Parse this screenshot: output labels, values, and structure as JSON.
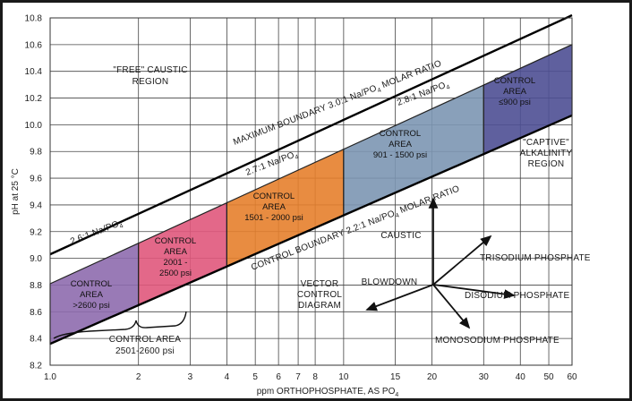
{
  "chart_data": {
    "type": "area",
    "title": "",
    "xlabel": "ppm ORTHOPHOSPHATE, AS PO",
    "xlabel_sub": "4",
    "ylabel": "pH at 25 °C",
    "x_scale": "log",
    "xlim": [
      1.0,
      60
    ],
    "ylim": [
      8.2,
      10.8
    ],
    "x_ticks": [
      1.0,
      2,
      3,
      4,
      5,
      6,
      7,
      8,
      10,
      15,
      20,
      30,
      40,
      50,
      60
    ],
    "x_tick_labels": [
      "1.0",
      "2",
      "3",
      "4",
      "5",
      "6",
      "7",
      "8",
      "10",
      "15",
      "20",
      "30",
      "40",
      "50",
      "60"
    ],
    "y_ticks": [
      8.2,
      8.4,
      8.6,
      8.8,
      9.0,
      9.2,
      9.4,
      9.6,
      9.8,
      10.0,
      10.2,
      10.4,
      10.6,
      10.8
    ],
    "y_tick_labels": [
      "8.2",
      "8.4",
      "8.6",
      "8.8",
      "9.0",
      "9.2",
      "9.4",
      "9.6",
      "9.8",
      "10.0",
      "10.2",
      "10.4",
      "10.6",
      "10.8"
    ],
    "grid": true,
    "boundaries": [
      {
        "label": "MAXIMUM BOUNDARY 3.0:1 Na/PO",
        "sub": "4",
        "label_tail": " MOLAR RATIO",
        "points": [
          [
            1.0,
            9.03
          ],
          [
            60,
            10.82
          ]
        ]
      },
      {
        "label": "CONTROL BOUNDARY 2.2:1 Na/PO",
        "sub": "4",
        "label_tail": " MOLAR RATIO",
        "points": [
          [
            1.0,
            8.36
          ],
          [
            60,
            10.07
          ]
        ]
      }
    ],
    "ratio_lines": [
      {
        "label": "2.6:1 Na/PO",
        "sub": "4"
      },
      {
        "label": "2.7:1 Na/PO",
        "sub": "4"
      },
      {
        "label": "2.8:1 Na/PO",
        "sub": "4"
      }
    ],
    "regions": [
      {
        "line1": "CONTROL",
        "line2": "AREA",
        "line3": ">2600 psi",
        "x_range": [
          1.0,
          2
        ],
        "color": "#8e6cae"
      },
      {
        "line1": "CONTROL",
        "line2": "AREA",
        "line3": "2001 -",
        "line4": "2500 psi",
        "x_range": [
          2,
          4
        ],
        "color": "#e0587c"
      },
      {
        "line1": "CONTROL",
        "line2": "AREA",
        "line3": "1501 - 2000 psi",
        "x_range": [
          4,
          10
        ],
        "color": "#e67f2c"
      },
      {
        "line1": "CONTROL",
        "line2": "AREA",
        "line3": "901 - 1500 psi",
        "x_range": [
          10,
          30
        ],
        "color": "#7c96b2"
      },
      {
        "line1": "CONTROL",
        "line2": "AREA",
        "line3": "≤900 psi",
        "x_range": [
          30,
          60
        ],
        "color": "#4e4f94"
      }
    ],
    "annotations": {
      "free_caustic": [
        "\"FREE\" CAUSTIC",
        "REGION"
      ],
      "captive": [
        "\"CAPTIVE\"",
        "ALKALINITY",
        "REGION"
      ],
      "bracket": [
        "CONTROL AREA",
        "2501-2600 psi"
      ],
      "vector_title": [
        "VECTOR",
        "CONTROL",
        "DIAGRAM"
      ],
      "vectors": {
        "caustic": "CAUSTIC",
        "blowdown": "BLOWDOWN",
        "trisodium": "TRISODIUM PHOSPHATE",
        "disodium": "DISODIUM PHOSPHATE",
        "monosodium": "MONOSODIUM PHOSPHATE"
      }
    }
  }
}
